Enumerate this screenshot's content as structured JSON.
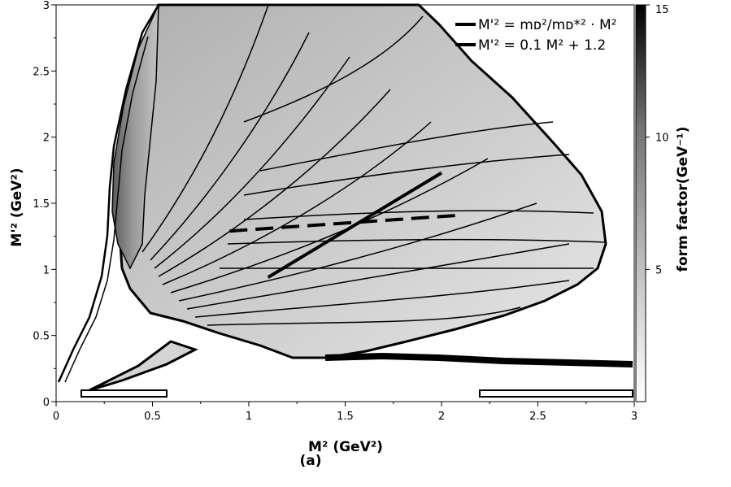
{
  "chart_data": {
    "type": "heatmap",
    "xlabel": "M² (GeV²)",
    "ylabel": "M'² (GeV²)",
    "xlim": [
      0,
      3
    ],
    "ylim": [
      0,
      3
    ],
    "x_ticks": [
      "0",
      "0.5",
      "1",
      "1.5",
      "2",
      "2.5",
      "3"
    ],
    "y_ticks": [
      "0",
      "0.5",
      "1",
      "1.5",
      "2",
      "2.5",
      "3"
    ],
    "colorbar": {
      "label": "form factor(GeV⁻¹)",
      "range": [
        0,
        15
      ],
      "ticks": [
        "5",
        "10",
        "15"
      ],
      "colormap": [
        "#ffffff",
        "#000000"
      ]
    },
    "sublabel": "(a)",
    "series": [
      {
        "name": "M'² = m_D²/m_D*² · M²",
        "legend_text": "M'² = mᴅ²/mᴅ*² · M²",
        "style": "solid",
        "x": [
          1.1,
          2.0
        ],
        "y": [
          0.94,
          1.73
        ]
      },
      {
        "name": "M'² = 0.1 M² + 1.2",
        "legend_text": "M'² = 0.1 M² + 1.2",
        "style": "dashed",
        "x": [
          0.9,
          2.1
        ],
        "y": [
          1.29,
          1.41
        ]
      }
    ],
    "legend_position": "top-right",
    "grid": false
  }
}
